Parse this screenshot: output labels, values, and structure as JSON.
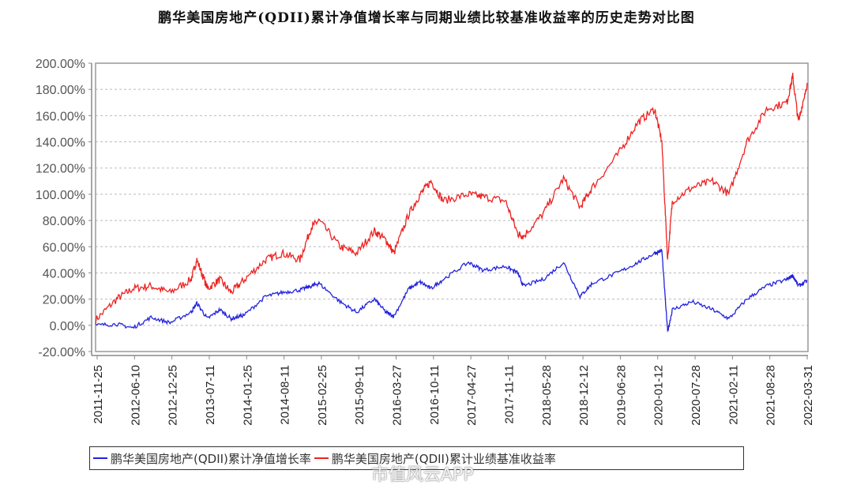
{
  "title": "鹏华美国房地产(QDII)累计净值增长率与同期业绩比较基准收益率的历史走势对比图",
  "watermark": "市值风云APP",
  "colors": {
    "nav": "#2222dd",
    "benchmark": "#ee2222",
    "grid": "#bbbbbb",
    "axis": "#888888"
  },
  "legend": [
    {
      "label": "鹏华美国房地产(QDII)累计净值增长率",
      "color": "#2222dd"
    },
    {
      "label": "鹏华美国房地产(QDII)累计业绩基准收益率",
      "color": "#ee2222"
    }
  ],
  "chart_data": {
    "type": "line",
    "title": "鹏华美国房地产(QDII)累计净值增长率与同期业绩比较基准收益率的历史走势对比图",
    "xlabel": "",
    "ylabel": "",
    "ylim": [
      -20,
      200
    ],
    "yticks": [
      "200.00%",
      "180.00%",
      "160.00%",
      "140.00%",
      "120.00%",
      "100.00%",
      "80.00%",
      "60.00%",
      "40.00%",
      "20.00%",
      "0.00%",
      "-20.00%"
    ],
    "ytick_values": [
      200,
      180,
      160,
      140,
      120,
      100,
      80,
      60,
      40,
      20,
      0,
      -20
    ],
    "xticks": [
      "2011-11-25",
      "2012-06-10",
      "2012-12-25",
      "2013-07-11",
      "2014-01-25",
      "2014-08-11",
      "2015-02-25",
      "2015-09-11",
      "2016-03-27",
      "2016-10-11",
      "2017-04-27",
      "2017-11-11",
      "2018-05-28",
      "2018-12-12",
      "2019-06-28",
      "2020-01-12",
      "2020-07-28",
      "2021-02-11",
      "2021-08-28",
      "2022-03-31"
    ],
    "grid": true,
    "legend_position": "bottom",
    "x": [
      "2011-11-25",
      "2012-03",
      "2012-06-10",
      "2012-09",
      "2012-12-25",
      "2013-04",
      "2013-05",
      "2013-07-11",
      "2013-09",
      "2013-11",
      "2014-01-25",
      "2014-05",
      "2014-08-11",
      "2014-11",
      "2015-01",
      "2015-02-25",
      "2015-06",
      "2015-09-11",
      "2015-12",
      "2016-02",
      "2016-03-27",
      "2016-06",
      "2016-08",
      "2016-10-11",
      "2016-12",
      "2017-04-27",
      "2017-07",
      "2017-11-11",
      "2018-01",
      "2018-02",
      "2018-05-28",
      "2018-09",
      "2018-12-12",
      "2019-02",
      "2019-06-28",
      "2019-10",
      "2020-01-12",
      "2020-02-20",
      "2020-03-20",
      "2020-04",
      "2020-07-28",
      "2020-11",
      "2021-02-11",
      "2021-05",
      "2021-08-28",
      "2021-12",
      "2022-01",
      "2022-02",
      "2022-03-31"
    ],
    "series": [
      {
        "name": "鹏华美国房地产(QDII)累计净值增长率",
        "values": [
          0,
          1,
          -2,
          6,
          2,
          10,
          17,
          5,
          12,
          5,
          8,
          22,
          25,
          27,
          30,
          32,
          18,
          10,
          20,
          10,
          7,
          28,
          33,
          28,
          35,
          48,
          42,
          45,
          40,
          30,
          35,
          48,
          22,
          32,
          40,
          48,
          55,
          57,
          -5,
          12,
          18,
          12,
          5,
          20,
          30,
          35,
          38,
          30,
          34
        ]
      },
      {
        "name": "鹏华美国房地产(QDII)累计业绩基准收益率",
        "values": [
          4,
          20,
          28,
          30,
          25,
          35,
          50,
          28,
          35,
          25,
          35,
          50,
          55,
          50,
          75,
          80,
          60,
          55,
          72,
          65,
          55,
          85,
          100,
          110,
          95,
          100,
          98,
          95,
          70,
          68,
          85,
          112,
          90,
          105,
          130,
          155,
          165,
          140,
          50,
          95,
          105,
          110,
          100,
          140,
          165,
          170,
          190,
          155,
          185
        ]
      }
    ]
  }
}
